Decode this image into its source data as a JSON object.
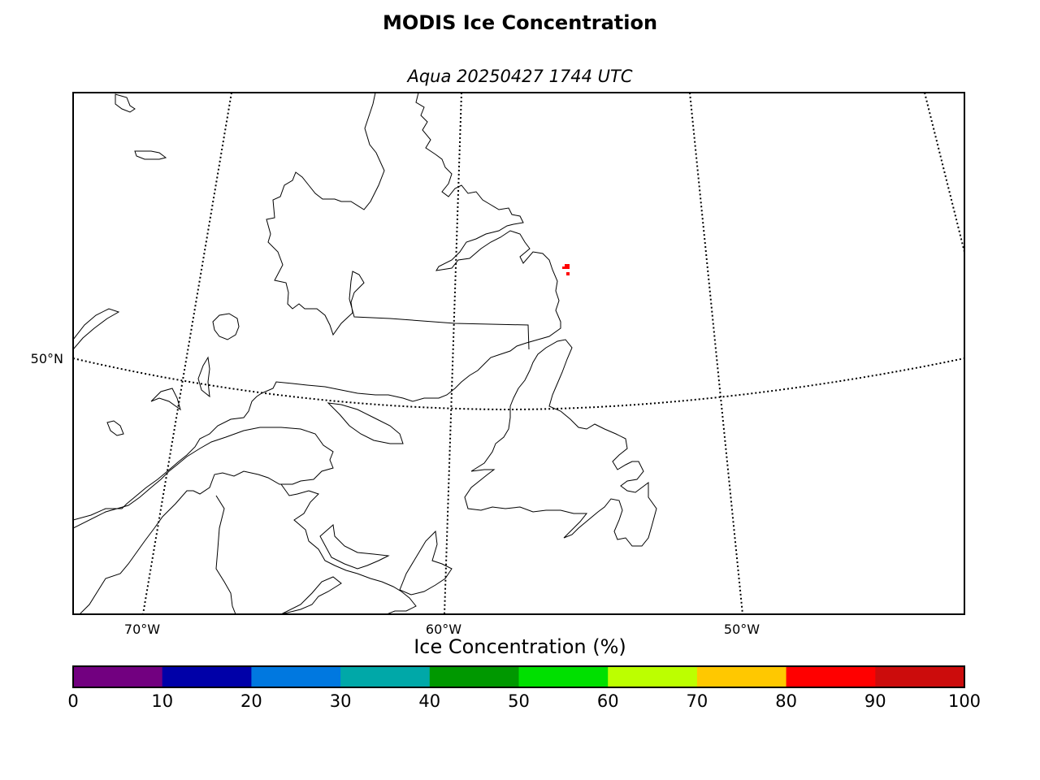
{
  "title": "MODIS Ice Concentration",
  "subtitle": "Aqua 20250427 1744 UTC",
  "map": {
    "graticule_labels": {
      "lat": [
        "50°N"
      ],
      "lon": [
        "70°W",
        "60°W",
        "50°W"
      ]
    },
    "ice_color": "#ff0000"
  },
  "colorbar": {
    "title": "Ice Concentration (%)",
    "ticks": [
      "0",
      "10",
      "20",
      "30",
      "40",
      "50",
      "60",
      "70",
      "80",
      "90",
      "100"
    ],
    "colors": [
      "#720080",
      "#0000a8",
      "#0078e0",
      "#00a8a8",
      "#009800",
      "#00e000",
      "#bcff00",
      "#ffc800",
      "#ff0000",
      "#cc0c0c"
    ]
  }
}
